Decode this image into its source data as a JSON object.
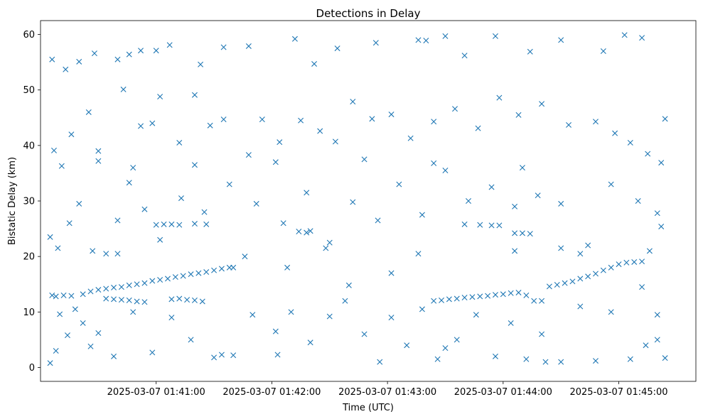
{
  "chart_data": {
    "type": "scatter",
    "title": "Detections in Delay",
    "xlabel": "Time (UTC)",
    "ylabel": "Bistatic Delay (km)",
    "x_ticks": [
      "2025-03-07 01:41:00",
      "2025-03-07 01:42:00",
      "2025-03-07 01:43:00",
      "2025-03-07 01:44:00",
      "2025-03-07 01:45:00"
    ],
    "y_ticks": [
      0,
      10,
      20,
      30,
      40,
      50,
      60
    ],
    "xlim": [
      "2025-03-07 01:40:00",
      "2025-03-07 01:45:40"
    ],
    "ylim": [
      -2.5,
      62.5
    ],
    "marker": "x",
    "color": "#1f77b4",
    "grid": false,
    "series": [
      {
        "points": [
          [
            "01:40:06",
            55.5
          ],
          [
            "01:40:13",
            53.7
          ],
          [
            "01:40:20",
            55.1
          ],
          [
            "01:40:28",
            56.6
          ],
          [
            "01:40:40",
            55.5
          ],
          [
            "01:40:46",
            56.4
          ],
          [
            "01:40:52",
            57.1
          ],
          [
            "01:41:00",
            57.1
          ],
          [
            "01:41:07",
            58.1
          ],
          [
            "01:41:23",
            54.6
          ],
          [
            "01:41:35",
            57.7
          ],
          [
            "01:41:48",
            57.9
          ],
          [
            "01:42:12",
            59.2
          ],
          [
            "01:42:22",
            54.7
          ],
          [
            "01:42:34",
            57.5
          ],
          [
            "01:42:54",
            58.5
          ],
          [
            "01:43:16",
            59.0
          ],
          [
            "01:43:20",
            58.9
          ],
          [
            "01:43:30",
            59.7
          ],
          [
            "01:43:40",
            56.2
          ],
          [
            "01:43:56",
            59.7
          ],
          [
            "01:44:14",
            56.9
          ],
          [
            "01:44:30",
            59.0
          ],
          [
            "01:44:52",
            57.0
          ],
          [
            "01:45:03",
            59.9
          ],
          [
            "01:45:12",
            59.4
          ],
          [
            "01:45:24",
            44.8
          ],
          [
            "01:40:07",
            39.1
          ],
          [
            "01:40:11",
            36.3
          ],
          [
            "01:40:16",
            42.0
          ],
          [
            "01:40:25",
            46.0
          ],
          [
            "01:40:30",
            37.2
          ],
          [
            "01:40:43",
            50.1
          ],
          [
            "01:40:52",
            43.5
          ],
          [
            "01:40:58",
            44.0
          ],
          [
            "01:41:02",
            48.8
          ],
          [
            "01:41:12",
            40.5
          ],
          [
            "01:41:20",
            49.1
          ],
          [
            "01:41:28",
            43.6
          ],
          [
            "01:41:35",
            44.7
          ],
          [
            "01:41:48",
            38.3
          ],
          [
            "01:41:55",
            44.7
          ],
          [
            "01:42:04",
            40.6
          ],
          [
            "01:42:15",
            44.5
          ],
          [
            "01:42:25",
            42.6
          ],
          [
            "01:42:33",
            40.7
          ],
          [
            "01:42:42",
            47.9
          ],
          [
            "01:42:52",
            44.8
          ],
          [
            "01:43:02",
            45.6
          ],
          [
            "01:43:12",
            41.3
          ],
          [
            "01:43:24",
            44.3
          ],
          [
            "01:43:35",
            46.6
          ],
          [
            "01:43:47",
            43.1
          ],
          [
            "01:43:58",
            48.6
          ],
          [
            "01:44:08",
            45.5
          ],
          [
            "01:44:20",
            47.5
          ],
          [
            "01:44:34",
            43.7
          ],
          [
            "01:44:48",
            44.3
          ],
          [
            "01:44:58",
            42.2
          ],
          [
            "01:45:06",
            40.5
          ],
          [
            "01:45:15",
            38.5
          ],
          [
            "01:45:22",
            36.9
          ],
          [
            "01:40:05",
            23.5
          ],
          [
            "01:40:09",
            21.5
          ],
          [
            "01:40:15",
            26.0
          ],
          [
            "01:40:20",
            29.5
          ],
          [
            "01:40:27",
            21.0
          ],
          [
            "01:40:34",
            20.5
          ],
          [
            "01:40:40",
            26.5
          ],
          [
            "01:40:46",
            33.3
          ],
          [
            "01:40:54",
            28.5
          ],
          [
            "01:41:02",
            23.0
          ],
          [
            "01:41:13",
            30.5
          ],
          [
            "01:41:25",
            28.0
          ],
          [
            "01:41:38",
            33.0
          ],
          [
            "01:41:52",
            29.5
          ],
          [
            "01:42:06",
            26.0
          ],
          [
            "01:42:18",
            31.5
          ],
          [
            "01:42:30",
            22.5
          ],
          [
            "01:42:42",
            29.8
          ],
          [
            "01:42:55",
            26.5
          ],
          [
            "01:43:06",
            33.0
          ],
          [
            "01:43:18",
            27.5
          ],
          [
            "01:43:30",
            35.5
          ],
          [
            "01:43:42",
            30.0
          ],
          [
            "01:43:54",
            32.5
          ],
          [
            "01:44:06",
            29.0
          ],
          [
            "01:44:18",
            31.0
          ],
          [
            "01:44:30",
            29.5
          ],
          [
            "01:44:44",
            22.0
          ],
          [
            "01:44:56",
            33.0
          ],
          [
            "01:45:10",
            30.0
          ],
          [
            "01:45:20",
            27.8
          ],
          [
            "01:45:22",
            25.4
          ],
          [
            "01:41:00",
            25.7
          ],
          [
            "01:41:04",
            25.8
          ],
          [
            "01:41:08",
            25.8
          ],
          [
            "01:41:12",
            25.7
          ],
          [
            "01:41:20",
            25.9
          ],
          [
            "01:41:26",
            25.8
          ],
          [
            "01:42:14",
            24.5
          ],
          [
            "01:42:18",
            24.3
          ],
          [
            "01:42:20",
            24.6
          ],
          [
            "01:43:40",
            25.8
          ],
          [
            "01:43:48",
            25.7
          ],
          [
            "01:43:54",
            25.6
          ],
          [
            "01:43:58",
            25.6
          ],
          [
            "01:44:06",
            24.2
          ],
          [
            "01:44:10",
            24.2
          ],
          [
            "01:44:14",
            24.1
          ],
          [
            "01:40:08",
            12.8
          ],
          [
            "01:40:12",
            13.0
          ],
          [
            "01:40:16",
            12.9
          ],
          [
            "01:40:22",
            13.2
          ],
          [
            "01:40:26",
            13.7
          ],
          [
            "01:40:30",
            14.0
          ],
          [
            "01:40:34",
            14.2
          ],
          [
            "01:40:38",
            14.4
          ],
          [
            "01:40:42",
            14.5
          ],
          [
            "01:40:46",
            14.8
          ],
          [
            "01:40:50",
            15.0
          ],
          [
            "01:40:54",
            15.2
          ],
          [
            "01:40:58",
            15.6
          ],
          [
            "01:41:02",
            15.8
          ],
          [
            "01:41:06",
            16.0
          ],
          [
            "01:41:10",
            16.3
          ],
          [
            "01:41:14",
            16.5
          ],
          [
            "01:41:18",
            16.8
          ],
          [
            "01:41:22",
            17.0
          ],
          [
            "01:41:26",
            17.2
          ],
          [
            "01:41:30",
            17.5
          ],
          [
            "01:41:34",
            17.8
          ],
          [
            "01:41:38",
            18.0
          ],
          [
            "01:41:40",
            18.0
          ],
          [
            "01:40:34",
            12.4
          ],
          [
            "01:40:38",
            12.3
          ],
          [
            "01:40:42",
            12.2
          ],
          [
            "01:40:46",
            12.1
          ],
          [
            "01:40:50",
            11.9
          ],
          [
            "01:40:54",
            11.8
          ],
          [
            "01:41:08",
            12.3
          ],
          [
            "01:41:12",
            12.4
          ],
          [
            "01:41:16",
            12.2
          ],
          [
            "01:41:20",
            12.1
          ],
          [
            "01:41:24",
            11.9
          ],
          [
            "01:43:24",
            12.0
          ],
          [
            "01:43:28",
            12.1
          ],
          [
            "01:43:32",
            12.3
          ],
          [
            "01:43:36",
            12.4
          ],
          [
            "01:43:40",
            12.6
          ],
          [
            "01:43:44",
            12.7
          ],
          [
            "01:43:48",
            12.8
          ],
          [
            "01:43:52",
            12.9
          ],
          [
            "01:43:56",
            13.1
          ],
          [
            "01:44:00",
            13.2
          ],
          [
            "01:44:04",
            13.4
          ],
          [
            "01:44:08",
            13.5
          ],
          [
            "01:44:12",
            13.0
          ],
          [
            "01:44:16",
            12.0
          ],
          [
            "01:44:20",
            12.0
          ],
          [
            "01:44:24",
            14.6
          ],
          [
            "01:44:28",
            14.9
          ],
          [
            "01:44:32",
            15.2
          ],
          [
            "01:44:36",
            15.5
          ],
          [
            "01:44:40",
            16.0
          ],
          [
            "01:44:44",
            16.4
          ],
          [
            "01:44:48",
            16.9
          ],
          [
            "01:44:52",
            17.5
          ],
          [
            "01:44:56",
            18.0
          ],
          [
            "01:45:00",
            18.6
          ],
          [
            "01:45:04",
            18.9
          ],
          [
            "01:45:08",
            19.0
          ],
          [
            "01:45:12",
            19.1
          ],
          [
            "01:40:06",
            13.0
          ],
          [
            "01:40:10",
            9.6
          ],
          [
            "01:40:14",
            5.8
          ],
          [
            "01:40:18",
            10.5
          ],
          [
            "01:40:22",
            8.0
          ],
          [
            "01:40:26",
            3.8
          ],
          [
            "01:40:30",
            6.2
          ],
          [
            "01:40:38",
            2.0
          ],
          [
            "01:40:48",
            10.0
          ],
          [
            "01:40:58",
            2.7
          ],
          [
            "01:41:08",
            9.0
          ],
          [
            "01:41:18",
            5.0
          ],
          [
            "01:41:30",
            1.8
          ],
          [
            "01:41:40",
            2.2
          ],
          [
            "01:41:50",
            9.5
          ],
          [
            "01:42:02",
            6.5
          ],
          [
            "01:42:10",
            10.0
          ],
          [
            "01:42:20",
            4.5
          ],
          [
            "01:42:30",
            9.2
          ],
          [
            "01:42:38",
            12.0
          ],
          [
            "01:42:48",
            6.0
          ],
          [
            "01:42:56",
            1.0
          ],
          [
            "01:43:02",
            9.0
          ],
          [
            "01:43:10",
            4.0
          ],
          [
            "01:43:18",
            10.5
          ],
          [
            "01:43:26",
            1.5
          ],
          [
            "01:43:36",
            5.0
          ],
          [
            "01:43:46",
            9.5
          ],
          [
            "01:43:56",
            2.0
          ],
          [
            "01:44:04",
            8.0
          ],
          [
            "01:44:12",
            1.5
          ],
          [
            "01:44:20",
            6.0
          ],
          [
            "01:44:30",
            1.0
          ],
          [
            "01:44:40",
            11.0
          ],
          [
            "01:44:48",
            1.2
          ],
          [
            "01:44:56",
            10.0
          ],
          [
            "01:45:06",
            1.5
          ],
          [
            "01:45:14",
            4.0
          ],
          [
            "01:45:20",
            9.5
          ],
          [
            "01:45:24",
            1.7
          ],
          [
            "01:40:05",
            0.8
          ],
          [
            "01:40:08",
            3.0
          ],
          [
            "01:41:34",
            2.3
          ],
          [
            "01:42:03",
            2.3
          ],
          [
            "01:43:30",
            3.5
          ],
          [
            "01:44:22",
            1.0
          ],
          [
            "01:45:20",
            5.0
          ],
          [
            "01:45:12",
            14.5
          ],
          [
            "01:42:40",
            14.8
          ],
          [
            "01:43:02",
            17.0
          ],
          [
            "01:42:28",
            21.5
          ],
          [
            "01:43:16",
            20.5
          ],
          [
            "01:42:08",
            18.0
          ],
          [
            "01:40:40",
            20.5
          ],
          [
            "01:41:46",
            20.0
          ],
          [
            "01:44:06",
            21.0
          ],
          [
            "01:44:30",
            21.5
          ],
          [
            "01:44:40",
            20.5
          ],
          [
            "01:45:16",
            21.0
          ],
          [
            "01:44:10",
            36.0
          ],
          [
            "01:43:24",
            36.8
          ],
          [
            "01:42:48",
            37.5
          ],
          [
            "01:42:02",
            37.0
          ],
          [
            "01:41:20",
            36.5
          ],
          [
            "01:40:30",
            39.0
          ],
          [
            "01:40:48",
            36.0
          ]
        ]
      }
    ]
  }
}
